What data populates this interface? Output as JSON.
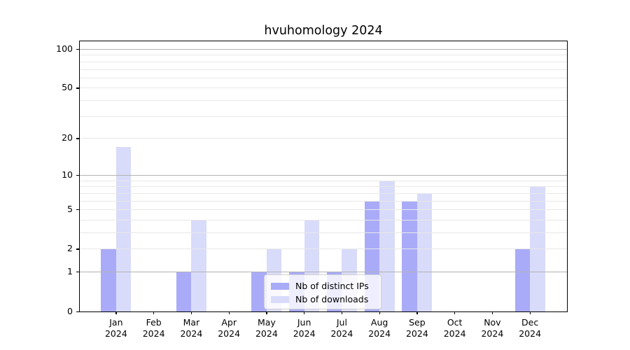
{
  "title": "hvuhomology 2024",
  "legend": {
    "items": [
      {
        "label": "Nb of distinct IPs",
        "color": "#a9abf8"
      },
      {
        "label": "Nb of downloads",
        "color": "#d9dbfa"
      }
    ]
  },
  "colors": {
    "bar_distinct_ips": "#a9abf8",
    "bar_downloads": "#d9dbfa",
    "major_gridline": "#b2b2b2",
    "minor_gridline": "#e8e8e8",
    "spine": "#000000"
  },
  "chart_data": {
    "type": "bar",
    "title": "hvuhomology 2024",
    "x_categories": [
      "Jan 2024",
      "Feb 2024",
      "Mar 2024",
      "Apr 2024",
      "May 2024",
      "Jun 2024",
      "Jul 2024",
      "Aug 2024",
      "Sep 2024",
      "Oct 2024",
      "Nov 2024",
      "Dec 2024"
    ],
    "x_tick_line1": [
      "Jan",
      "Feb",
      "Mar",
      "Apr",
      "May",
      "Jun",
      "Jul",
      "Aug",
      "Sep",
      "Oct",
      "Nov",
      "Dec"
    ],
    "x_tick_line2": "2024",
    "series": [
      {
        "name": "Nb of distinct IPs",
        "color": "#a9abf8",
        "values": [
          2,
          0,
          1,
          0,
          1,
          1,
          1,
          6,
          6,
          0,
          0,
          2
        ]
      },
      {
        "name": "Nb of downloads",
        "color": "#d9dbfa",
        "values": [
          17,
          0,
          4,
          0,
          2,
          4,
          2,
          9,
          7,
          0,
          0,
          8
        ]
      }
    ],
    "xlabel": "",
    "ylabel": "",
    "ylim": [
      0,
      100
    ],
    "y_scale": "log10(1+v)",
    "y_axis_ticks": [
      0,
      1,
      2,
      5,
      10,
      20,
      50,
      100
    ],
    "y_major_gridlines": [
      1,
      10,
      100
    ],
    "y_minor_gridlines": [
      2,
      3,
      4,
      5,
      6,
      7,
      8,
      9,
      20,
      30,
      40,
      50,
      60,
      70,
      80,
      90
    ],
    "grid": true,
    "legend_position": "lower center"
  }
}
